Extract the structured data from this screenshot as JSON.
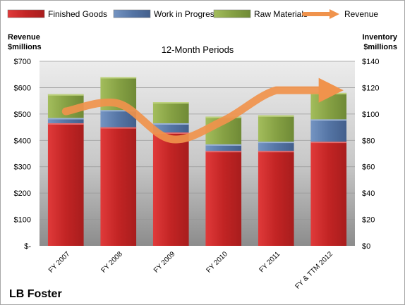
{
  "chart_data": {
    "type": "bar",
    "stacked": true,
    "title": "12-Month Periods",
    "company_label": "LB Foster",
    "categories": [
      "FY 2007",
      "FY 2008",
      "FY 2009",
      "FY 2010",
      "FY 2011",
      "FY & TTM 2012"
    ],
    "left_axis": {
      "label_line1": "Revenue",
      "label_line2": "$millions",
      "range": [
        0,
        700
      ],
      "ticks": [
        0,
        100,
        200,
        300,
        400,
        500,
        600,
        700
      ],
      "tick_labels": [
        "$-",
        "$100",
        "$200",
        "$300",
        "$400",
        "$500",
        "$600",
        "$700"
      ]
    },
    "right_axis": {
      "label_line1": "Inventory",
      "label_line2": "$millions",
      "range": [
        0,
        140
      ],
      "ticks": [
        0,
        20,
        40,
        60,
        80,
        100,
        120,
        140
      ],
      "tick_labels": [
        "$0",
        "$20",
        "$40",
        "$60",
        "$80",
        "$100",
        "$120",
        "$140"
      ]
    },
    "series": [
      {
        "name": "Finished Goods",
        "axis": "right",
        "kind": "bar",
        "color": "#cc2a2a",
        "values": [
          93,
          90,
          86,
          72,
          72,
          79
        ]
      },
      {
        "name": "Work in Progress",
        "axis": "right",
        "kind": "bar",
        "color": "#5f7fae",
        "values": [
          4,
          13,
          7,
          5,
          7,
          17
        ]
      },
      {
        "name": "Raw Materials",
        "axis": "right",
        "kind": "bar",
        "color": "#8faa4a",
        "values": [
          18,
          25,
          16,
          21,
          20,
          20
        ]
      },
      {
        "name": "Revenue",
        "axis": "left",
        "kind": "line",
        "color": "#f0934c",
        "values": [
          510,
          540,
          405,
          475,
          590,
          590
        ]
      }
    ],
    "grid": true,
    "legend_position": "top"
  }
}
